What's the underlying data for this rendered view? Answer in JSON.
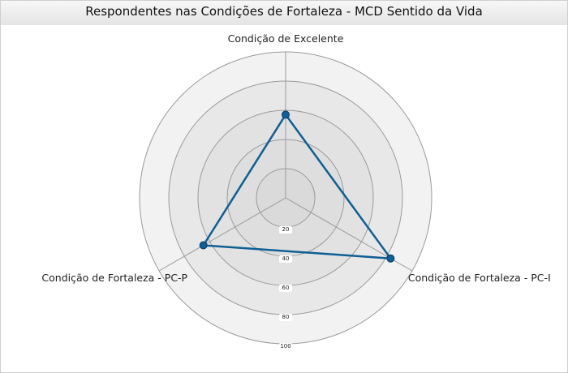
{
  "chart_data": {
    "type": "radar",
    "title": "Respondentes nas Condições de Fortaleza - MCD Sentido da Vida",
    "axes": [
      "Condição de Excelente",
      "Condição de Fortaleza - PC-I",
      "Condição de Fortaleza - PC-P"
    ],
    "radial_ticks": [
      "20",
      "40",
      "60",
      "80",
      "100"
    ],
    "rlim": [
      0,
      100
    ],
    "series": [
      {
        "values": [
          57,
          83,
          65
        ],
        "color": "#0f5f94"
      }
    ],
    "grid": true
  }
}
